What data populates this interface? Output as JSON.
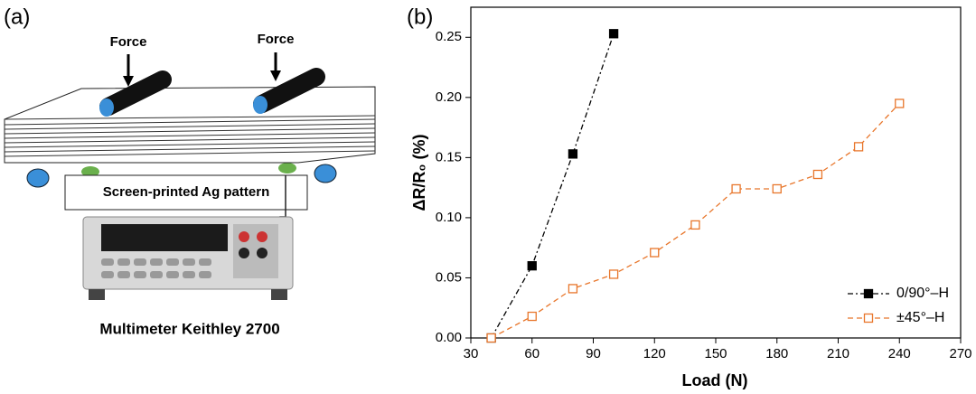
{
  "panel_a": {
    "label": "(a)",
    "force_left": "Force",
    "force_right": "Force",
    "pattern_label": "Screen-printed Ag pattern",
    "device_label": "Multimeter Keithley 2700"
  },
  "chart_data": {
    "type": "line",
    "panel_label": "(b)",
    "x_label": "Load (N)",
    "y_label": "ΔR/R₀ (%)",
    "xlim": [
      30,
      270
    ],
    "xticks": [
      30,
      60,
      90,
      120,
      150,
      180,
      210,
      240,
      270
    ],
    "ylim": [
      0,
      0.275
    ],
    "yticks": [
      {
        "value": 0,
        "label": "0.00"
      },
      {
        "value": 0.05,
        "label": "0.05"
      },
      {
        "value": 0.1,
        "label": "0.10"
      },
      {
        "value": 0.15,
        "label": "0.15"
      },
      {
        "value": 0.2,
        "label": "0.20"
      },
      {
        "value": 0.25,
        "label": "0.25"
      }
    ],
    "legend": "lower right",
    "series": [
      {
        "name": "0/90°–H",
        "color": "#000000",
        "marker": "filled-square",
        "x": [
          40,
          60,
          80,
          100
        ],
        "values": [
          0,
          0.06,
          0.153,
          0.253
        ]
      },
      {
        "name": "±45°–H",
        "color": "#e8762b",
        "marker": "open-square",
        "x": [
          40,
          60,
          80,
          100,
          120,
          140,
          160,
          180,
          200,
          220,
          240
        ],
        "values": [
          0,
          0.018,
          0.041,
          0.053,
          0.071,
          0.094,
          0.124,
          0.124,
          0.136,
          0.159,
          0.195
        ]
      }
    ]
  }
}
